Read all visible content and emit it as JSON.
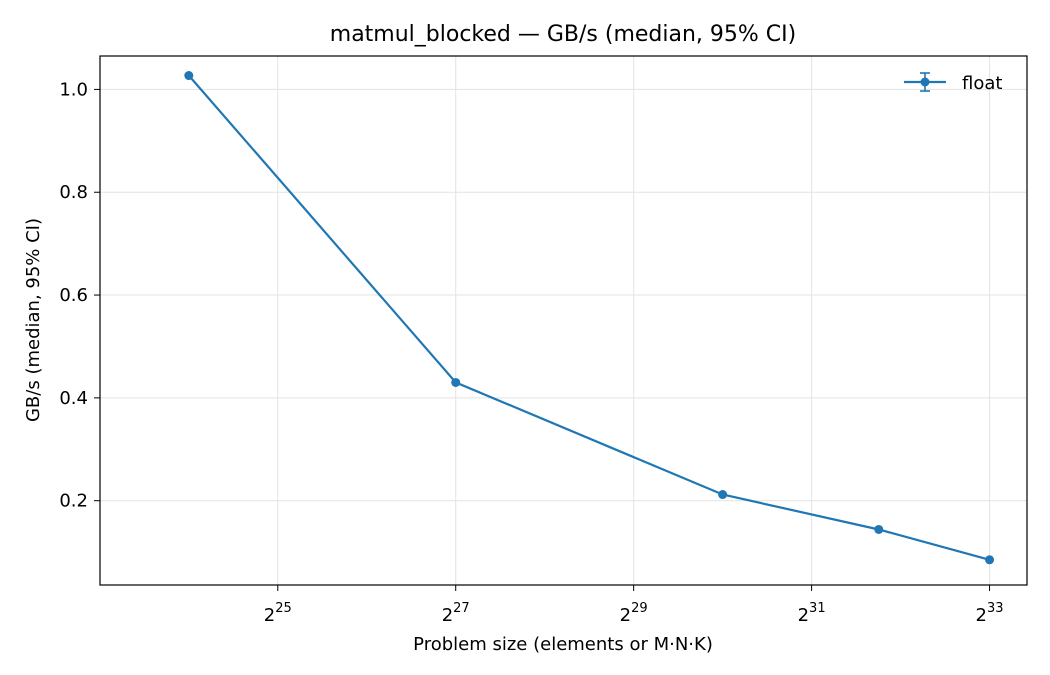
{
  "chart_data": {
    "type": "line",
    "title": "matmul_blocked — GB/s (median, 95% CI)",
    "xlabel": "Problem size (elements or M·N·K)",
    "ylabel": "GB/s (median, 95% CI)",
    "x_scale": "log2",
    "x_ticks": [
      {
        "base": "2",
        "exp": "25",
        "value": 33554432
      },
      {
        "base": "2",
        "exp": "27",
        "value": 134217728
      },
      {
        "base": "2",
        "exp": "29",
        "value": 536870912
      },
      {
        "base": "2",
        "exp": "31",
        "value": 2147483648
      },
      {
        "base": "2",
        "exp": "33",
        "value": 8589934592
      }
    ],
    "y_ticks": [
      "0.2",
      "0.4",
      "0.6",
      "0.8",
      "1.0"
    ],
    "xlim": [
      8400000,
      11500000000
    ],
    "ylim": [
      0.036,
      1.065
    ],
    "grid": true,
    "legend_position": "top-right",
    "series": [
      {
        "name": "float",
        "color": "#1f77b4",
        "marker": "circle",
        "error_bars": true,
        "x": [
          16777216,
          134217728,
          1073741824,
          3623878656,
          8589934592
        ],
        "y": [
          1.027,
          0.43,
          0.212,
          0.144,
          0.085
        ]
      }
    ]
  }
}
